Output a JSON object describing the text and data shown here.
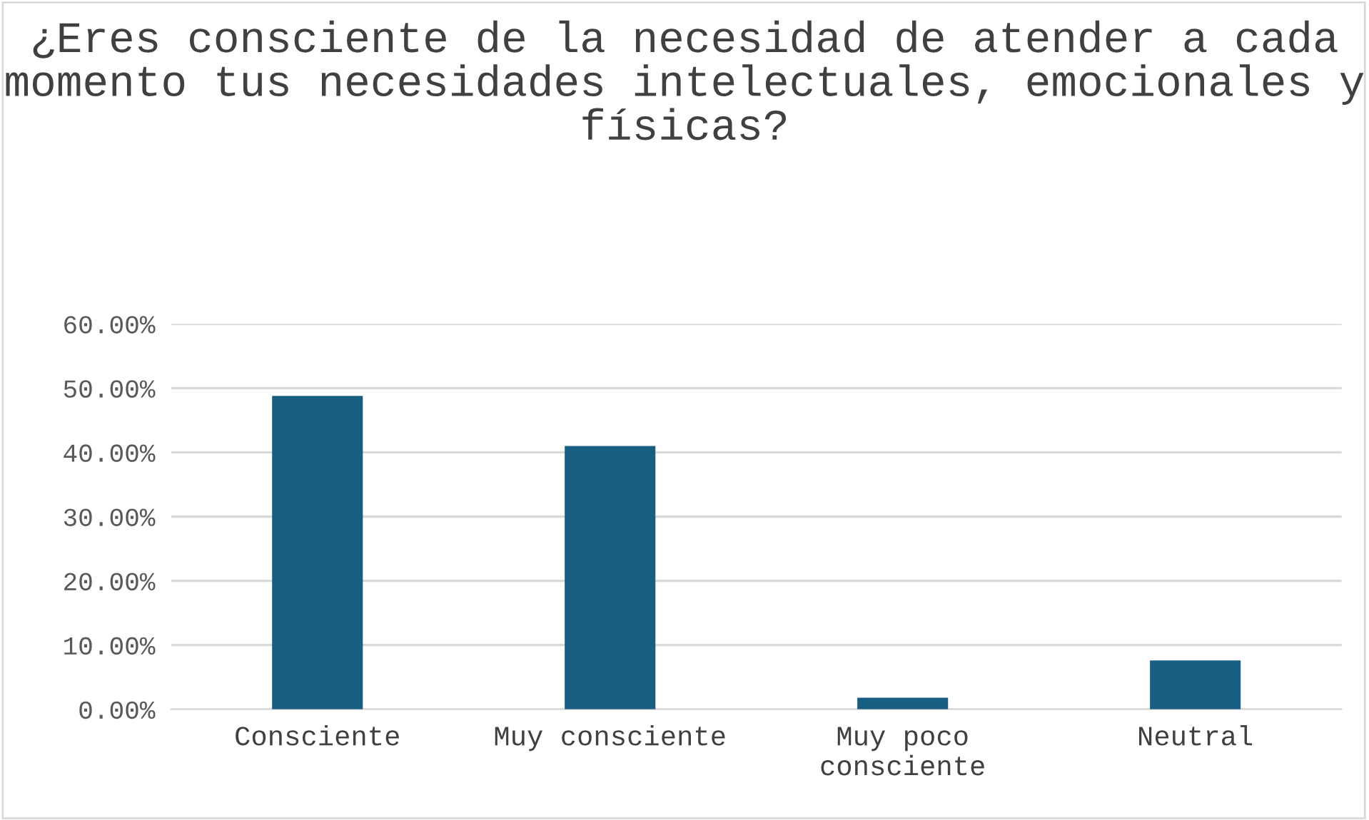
{
  "chart_data": {
    "type": "bar",
    "title": "¿Eres consciente de la necesidad de atender a cada momento tus necesidades intelectuales, emocionales y físicas?",
    "categories": [
      "Consciente",
      "Muy consciente",
      "Muy poco\nconsciente",
      "Neutral"
    ],
    "values": [
      48.8,
      41.0,
      1.8,
      7.6
    ],
    "color": "#175e82",
    "ylim": [
      0,
      60
    ],
    "yticks": [
      {
        "value": 0,
        "label": "0.00%"
      },
      {
        "value": 10,
        "label": "10.00%"
      },
      {
        "value": 20,
        "label": "20.00%"
      },
      {
        "value": 30,
        "label": "30.00%"
      },
      {
        "value": 40,
        "label": "40.00%"
      },
      {
        "value": 50,
        "label": "50.00%"
      },
      {
        "value": 60,
        "label": "60.00%"
      }
    ],
    "grid": "y"
  }
}
